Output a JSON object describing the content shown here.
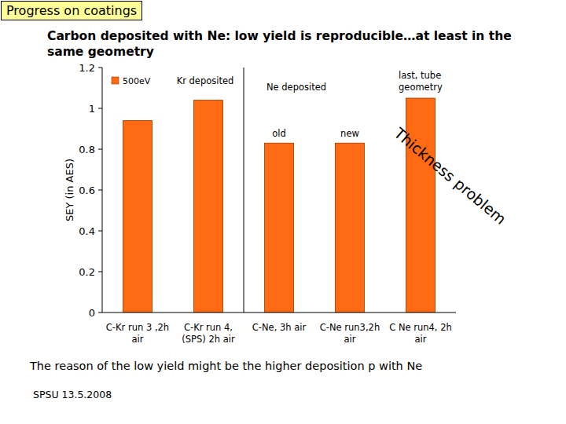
{
  "chart_data": {
    "type": "bar",
    "title": "Progress on coatings",
    "subtitle": "Carbon deposited with Ne: low yield is reproducible…at least in the same geometry",
    "y_label": "SEY (in AES)",
    "categories": [
      "C-Kr run 3 ,2h air",
      "C-Kr run 4, (SPS) 2h air",
      "C-Ne, 3h air",
      "C-Ne run3,2h air",
      "C Ne run4, 2h air"
    ],
    "series": [
      {
        "name": "500eV",
        "color": "#ff6a13",
        "values": [
          0.94,
          1.04,
          0.83,
          0.83,
          1.05
        ]
      }
    ],
    "ylim": [
      0,
      1.2
    ],
    "yticks": [
      0,
      0.2,
      0.4,
      0.6,
      0.8,
      1,
      1.2
    ],
    "grid": false,
    "legend": "top-left",
    "annotations": [
      "Kr deposited",
      "Ne deposited",
      "old",
      "new",
      "last, tube geometry",
      "Thickness problem"
    ],
    "caption": "The reason of the low yield might be the higher deposition p with Ne",
    "footer": "SPSU 13.5.2008"
  }
}
